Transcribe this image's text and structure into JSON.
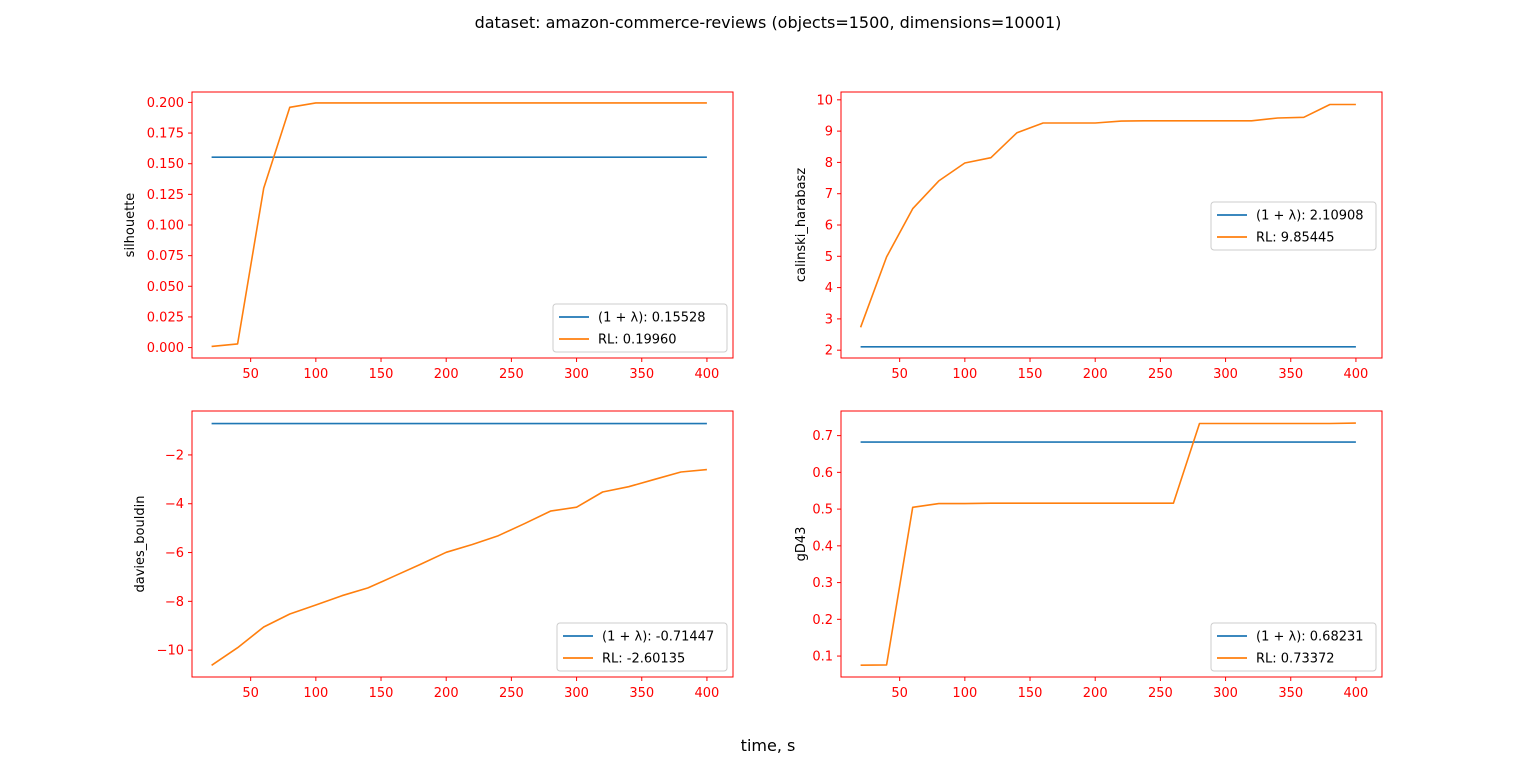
{
  "figure": {
    "title": "dataset: amazon-commerce-reviews (objects=1500, dimensions=10001)",
    "xlabel": "time, s"
  },
  "colors": {
    "baseline": "#1f77b4",
    "rl": "#ff7f0e",
    "spine": "#ff0000",
    "tick": "#ff0000"
  },
  "chart_data": [
    {
      "type": "line",
      "ylabel": "silhouette",
      "xlim": [
        5,
        420
      ],
      "ylim": [
        -0.0085,
        0.2085
      ],
      "xticks": [
        50,
        100,
        150,
        200,
        250,
        300,
        350,
        400
      ],
      "yticks": [
        0.0,
        0.025,
        0.05,
        0.075,
        0.1,
        0.125,
        0.15,
        0.175,
        0.2
      ],
      "ytick_labels": [
        "0.000",
        "0.025",
        "0.050",
        "0.075",
        "0.100",
        "0.125",
        "0.150",
        "0.175",
        "0.200"
      ],
      "legend_position": "lower right",
      "series": [
        {
          "name": "(1 + λ): 0.15528",
          "x": [
            20,
            400
          ],
          "y": [
            0.15528,
            0.15528
          ]
        },
        {
          "name": "RL: 0.19960",
          "x": [
            20,
            40,
            60,
            80,
            100,
            120,
            140,
            160,
            180,
            200,
            220,
            240,
            260,
            280,
            300,
            320,
            340,
            360,
            380,
            400
          ],
          "y": [
            0.001,
            0.003,
            0.13,
            0.196,
            0.1996,
            0.1996,
            0.1996,
            0.1996,
            0.1996,
            0.1996,
            0.1996,
            0.1996,
            0.1996,
            0.1996,
            0.1996,
            0.1996,
            0.1996,
            0.1996,
            0.1996,
            0.1996
          ]
        }
      ]
    },
    {
      "type": "line",
      "ylabel": "calinski_harabasz",
      "xlim": [
        5,
        420
      ],
      "ylim": [
        1.75,
        10.25
      ],
      "xticks": [
        50,
        100,
        150,
        200,
        250,
        300,
        350,
        400
      ],
      "yticks": [
        2,
        3,
        4,
        5,
        6,
        7,
        8,
        9,
        10
      ],
      "ytick_labels": [
        "2",
        "3",
        "4",
        "5",
        "6",
        "7",
        "8",
        "9",
        "10"
      ],
      "legend_position": "center right",
      "series": [
        {
          "name": "(1 + λ): 2.10908",
          "x": [
            20,
            400
          ],
          "y": [
            2.10908,
            2.10908
          ]
        },
        {
          "name": "RL: 9.85445",
          "x": [
            20,
            40,
            60,
            80,
            100,
            120,
            140,
            160,
            180,
            200,
            220,
            240,
            260,
            280,
            300,
            320,
            340,
            360,
            380,
            400
          ],
          "y": [
            2.73,
            4.98,
            6.52,
            7.41,
            7.98,
            8.15,
            8.95,
            9.26,
            9.26,
            9.26,
            9.32,
            9.33,
            9.33,
            9.33,
            9.33,
            9.33,
            9.42,
            9.44,
            9.85,
            9.85
          ]
        }
      ]
    },
    {
      "type": "line",
      "ylabel": "davies_bouldin",
      "xlim": [
        5,
        420
      ],
      "ylim": [
        -11.1,
        -0.2
      ],
      "xticks": [
        50,
        100,
        150,
        200,
        250,
        300,
        350,
        400
      ],
      "yticks": [
        -10,
        -8,
        -6,
        -4,
        -2
      ],
      "ytick_labels": [
        "−10",
        "−8",
        "−6",
        "−4",
        "−2"
      ],
      "legend_position": "lower right",
      "series": [
        {
          "name": "(1 + λ): -0.71447",
          "x": [
            20,
            400
          ],
          "y": [
            -0.71447,
            -0.71447
          ]
        },
        {
          "name": "RL: -2.60135",
          "x": [
            20,
            40,
            60,
            80,
            100,
            120,
            140,
            160,
            180,
            200,
            220,
            240,
            260,
            280,
            300,
            320,
            340,
            360,
            380,
            400
          ],
          "y": [
            -10.62,
            -9.9,
            -9.05,
            -8.52,
            -8.15,
            -7.77,
            -7.45,
            -6.97,
            -6.49,
            -5.99,
            -5.67,
            -5.31,
            -4.82,
            -4.3,
            -4.14,
            -3.52,
            -3.3,
            -3.0,
            -2.7,
            -2.6
          ]
        }
      ]
    },
    {
      "type": "line",
      "ylabel": "gD43",
      "xlim": [
        5,
        420
      ],
      "ylim": [
        0.043,
        0.767
      ],
      "xticks": [
        50,
        100,
        150,
        200,
        250,
        300,
        350,
        400
      ],
      "yticks": [
        0.1,
        0.2,
        0.3,
        0.4,
        0.5,
        0.6,
        0.7
      ],
      "ytick_labels": [
        "0.1",
        "0.2",
        "0.3",
        "0.4",
        "0.5",
        "0.6",
        "0.7"
      ],
      "legend_position": "lower right",
      "series": [
        {
          "name": "(1 + λ): 0.68231",
          "x": [
            20,
            400
          ],
          "y": [
            0.68231,
            0.68231
          ]
        },
        {
          "name": "RL: 0.73372",
          "x": [
            20,
            40,
            60,
            80,
            100,
            120,
            140,
            160,
            180,
            200,
            220,
            240,
            260,
            280,
            300,
            320,
            340,
            360,
            380,
            400
          ],
          "y": [
            0.075,
            0.076,
            0.505,
            0.515,
            0.515,
            0.516,
            0.516,
            0.516,
            0.516,
            0.516,
            0.516,
            0.516,
            0.516,
            0.733,
            0.733,
            0.733,
            0.733,
            0.733,
            0.733,
            0.734
          ]
        }
      ]
    }
  ]
}
